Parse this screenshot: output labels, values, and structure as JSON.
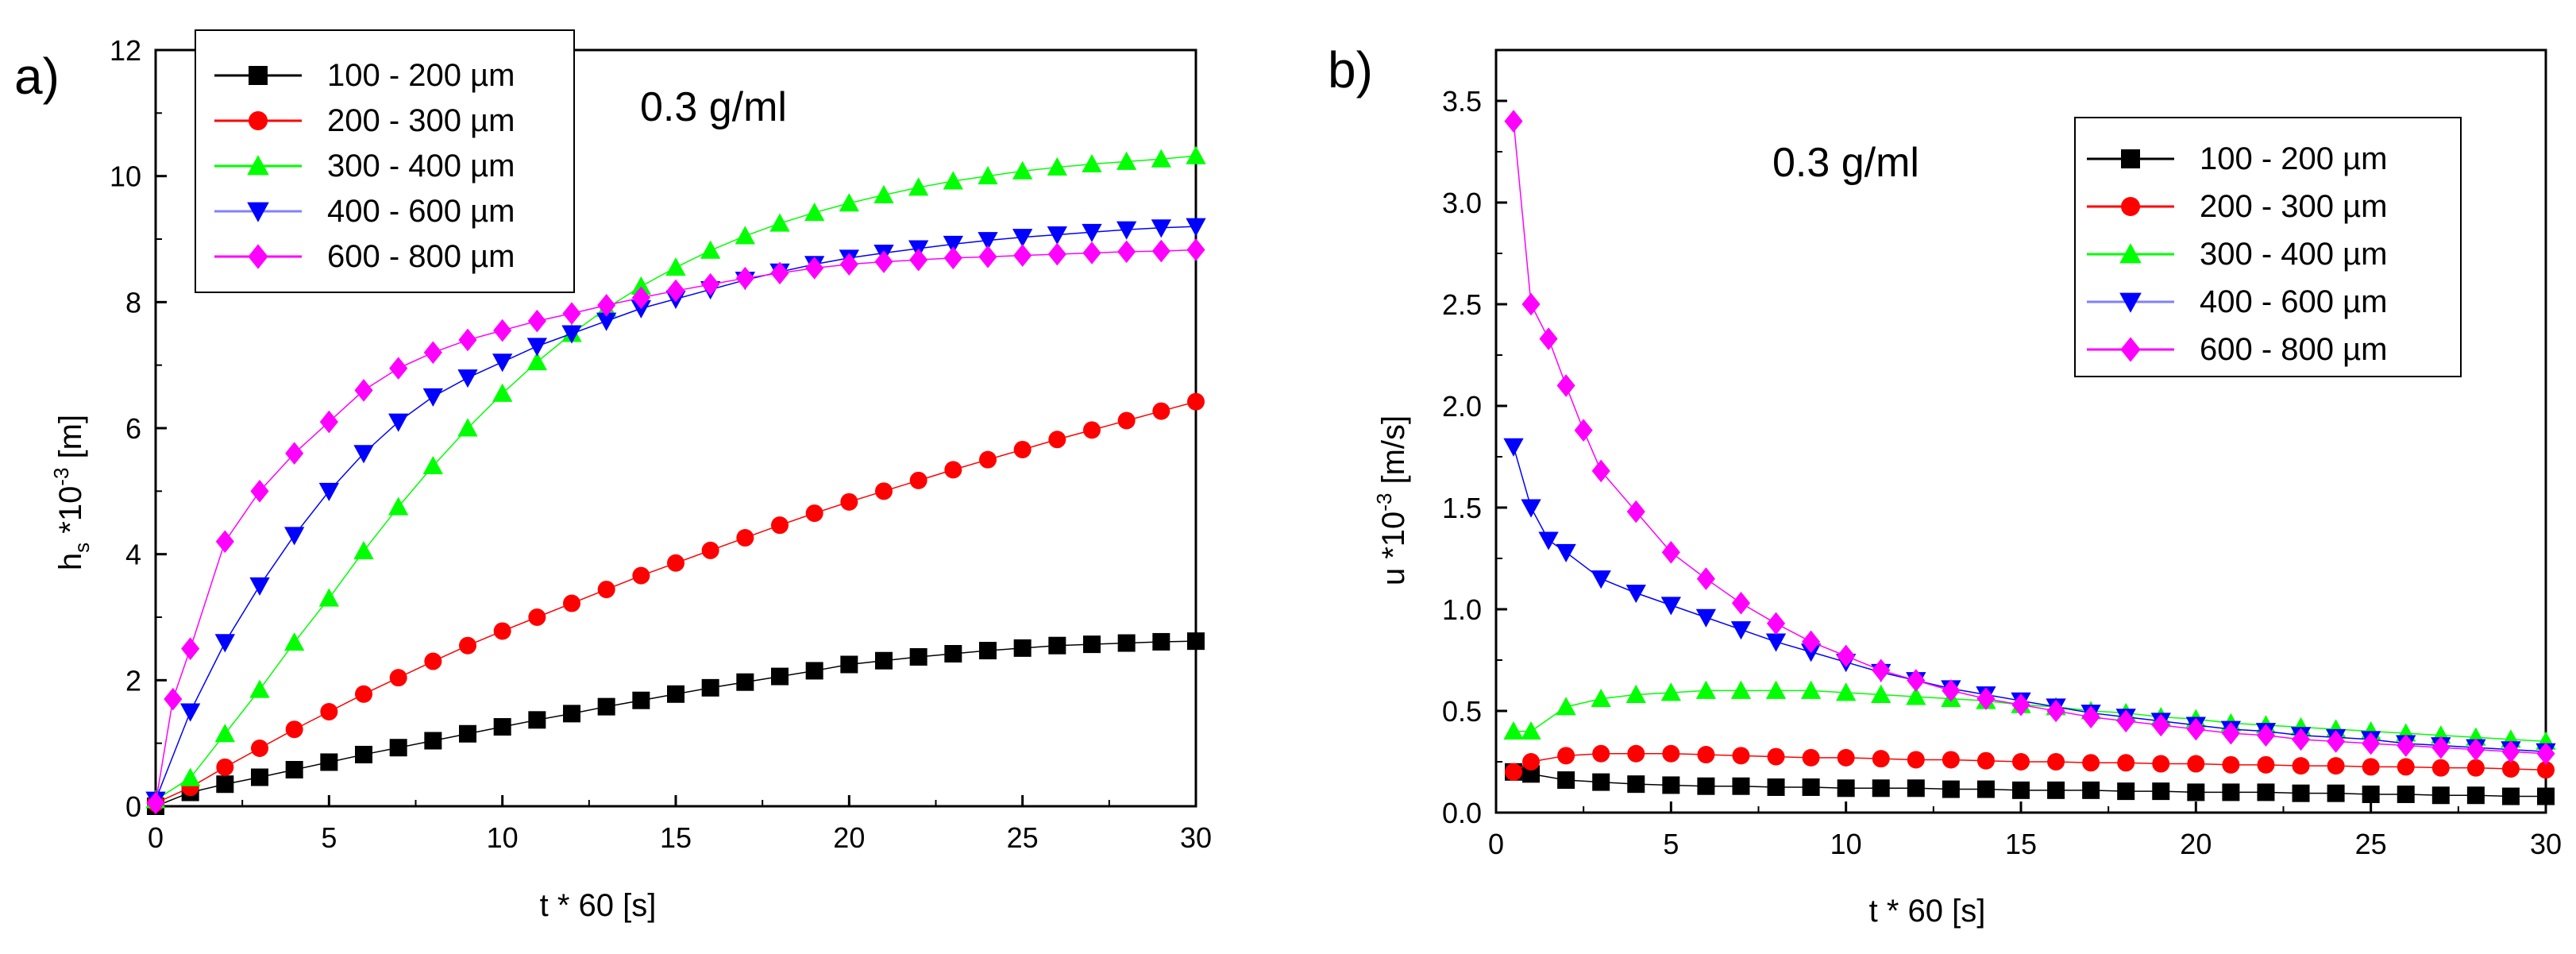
{
  "chart_data": [
    {
      "panel_label": "a)",
      "type": "scatter",
      "annotation": "0.3 g/ml",
      "xlabel": "t * 60 [s]",
      "ylabel": {
        "base": "h",
        "sub": "s",
        "mid": " *10",
        "sup": "-3",
        "end": " [m]"
      },
      "xlim": [
        0,
        30
      ],
      "ylim": [
        0,
        12
      ],
      "xticks": [
        "0",
        "5",
        "10",
        "15",
        "20",
        "25",
        "30"
      ],
      "yticks": [
        "0",
        "2",
        "4",
        "6",
        "8",
        "10",
        "12"
      ],
      "legend_position": "top-left",
      "series": [
        {
          "name": "100 - 200 µm",
          "color": "#000000",
          "marker": "square",
          "x": [
            0,
            1,
            2,
            3,
            4,
            5,
            6,
            7,
            8,
            9,
            10,
            11,
            12,
            13,
            14,
            15,
            16,
            17,
            18,
            19,
            20,
            21,
            22,
            23,
            24,
            25,
            26,
            27,
            28,
            29,
            30
          ],
          "y": [
            0,
            0.22,
            0.35,
            0.46,
            0.58,
            0.7,
            0.82,
            0.93,
            1.04,
            1.15,
            1.26,
            1.37,
            1.47,
            1.58,
            1.68,
            1.78,
            1.88,
            1.97,
            2.06,
            2.15,
            2.25,
            2.31,
            2.37,
            2.42,
            2.47,
            2.51,
            2.55,
            2.57,
            2.59,
            2.61,
            2.62
          ]
        },
        {
          "name": "200 - 300 µm",
          "color": "#ff0000",
          "marker": "circle",
          "x": [
            0,
            1,
            2,
            3,
            4,
            5,
            6,
            7,
            8,
            9,
            10,
            11,
            12,
            13,
            14,
            15,
            16,
            17,
            18,
            19,
            20,
            21,
            22,
            23,
            24,
            25,
            26,
            27,
            28,
            29,
            30
          ],
          "y": [
            0.05,
            0.3,
            0.62,
            0.92,
            1.22,
            1.5,
            1.78,
            2.04,
            2.3,
            2.55,
            2.78,
            3.0,
            3.22,
            3.44,
            3.66,
            3.86,
            4.06,
            4.26,
            4.46,
            4.65,
            4.83,
            5.0,
            5.17,
            5.34,
            5.5,
            5.66,
            5.82,
            5.97,
            6.12,
            6.27,
            6.42
          ]
        },
        {
          "name": "300 - 400 µm",
          "color": "#00ff00",
          "marker": "triangle-up",
          "x": [
            0,
            1,
            2,
            3,
            4,
            5,
            6,
            7,
            8,
            9,
            10,
            11,
            12,
            13,
            14,
            15,
            16,
            17,
            18,
            19,
            20,
            21,
            22,
            23,
            24,
            25,
            26,
            27,
            28,
            29,
            30
          ],
          "y": [
            0.1,
            0.45,
            1.15,
            1.85,
            2.6,
            3.3,
            4.05,
            4.75,
            5.4,
            6.0,
            6.55,
            7.05,
            7.5,
            7.9,
            8.25,
            8.55,
            8.82,
            9.05,
            9.25,
            9.42,
            9.57,
            9.7,
            9.82,
            9.92,
            10.0,
            10.08,
            10.14,
            10.19,
            10.23,
            10.27,
            10.32
          ]
        },
        {
          "name": "400 - 600 µm",
          "color": "#0000ff",
          "marker": "triangle-down",
          "x": [
            0,
            1,
            2,
            3,
            4,
            5,
            6,
            7,
            8,
            9,
            10,
            11,
            12,
            13,
            14,
            15,
            16,
            17,
            18,
            19,
            20,
            21,
            22,
            23,
            24,
            25,
            26,
            27,
            28,
            29,
            30
          ],
          "y": [
            0.1,
            1.5,
            2.6,
            3.5,
            4.3,
            5.0,
            5.6,
            6.1,
            6.5,
            6.8,
            7.05,
            7.3,
            7.5,
            7.7,
            7.9,
            8.05,
            8.2,
            8.35,
            8.48,
            8.6,
            8.7,
            8.78,
            8.85,
            8.92,
            8.98,
            9.03,
            9.07,
            9.11,
            9.15,
            9.18,
            9.2
          ]
        },
        {
          "name": "600 - 800 µm",
          "color": "#ff00ff",
          "marker": "diamond",
          "x": [
            0,
            0.5,
            1,
            2,
            3,
            4,
            5,
            6,
            7,
            8,
            9,
            10,
            11,
            12,
            13,
            14,
            15,
            16,
            17,
            18,
            19,
            20,
            21,
            22,
            23,
            24,
            25,
            26,
            27,
            28,
            29,
            30
          ],
          "y": [
            0.05,
            1.7,
            2.5,
            4.2,
            5.0,
            5.6,
            6.1,
            6.6,
            6.95,
            7.2,
            7.4,
            7.55,
            7.7,
            7.82,
            7.95,
            8.07,
            8.18,
            8.28,
            8.38,
            8.46,
            8.54,
            8.6,
            8.64,
            8.67,
            8.7,
            8.72,
            8.74,
            8.76,
            8.78,
            8.8,
            8.81,
            8.83
          ]
        }
      ]
    },
    {
      "panel_label": "b)",
      "type": "scatter",
      "annotation": "0.3 g/ml",
      "xlabel": "t * 60 [s]",
      "ylabel": {
        "base": "u",
        "sub": "",
        "mid": " *10",
        "sup": "-3",
        "end": " [m/s]"
      },
      "xlim": [
        0,
        30
      ],
      "ylim": [
        0,
        3.75
      ],
      "xticks": [
        "0",
        "5",
        "10",
        "15",
        "20",
        "25",
        "30"
      ],
      "yticks": [
        "0.0",
        "0.5",
        "1.0",
        "1.5",
        "2.0",
        "2.5",
        "3.0",
        "3.5"
      ],
      "legend_position": "top-right",
      "series": [
        {
          "name": "100 - 200 µm",
          "color": "#000000",
          "marker": "square",
          "x": [
            0.5,
            1,
            2,
            3,
            4,
            5,
            6,
            7,
            8,
            9,
            10,
            11,
            12,
            13,
            14,
            15,
            16,
            17,
            18,
            19,
            20,
            21,
            22,
            23,
            24,
            25,
            26,
            27,
            28,
            29,
            30
          ],
          "y": [
            0.2,
            0.19,
            0.16,
            0.15,
            0.14,
            0.135,
            0.13,
            0.13,
            0.125,
            0.125,
            0.12,
            0.12,
            0.12,
            0.115,
            0.115,
            0.11,
            0.11,
            0.11,
            0.105,
            0.105,
            0.1,
            0.1,
            0.1,
            0.095,
            0.095,
            0.09,
            0.09,
            0.085,
            0.085,
            0.08,
            0.08
          ]
        },
        {
          "name": "200 - 300 µm",
          "color": "#ff0000",
          "marker": "circle",
          "x": [
            0.5,
            1,
            2,
            3,
            4,
            5,
            6,
            7,
            8,
            9,
            10,
            11,
            12,
            13,
            14,
            15,
            16,
            17,
            18,
            19,
            20,
            21,
            22,
            23,
            24,
            25,
            26,
            27,
            28,
            29,
            30
          ],
          "y": [
            0.2,
            0.25,
            0.28,
            0.29,
            0.29,
            0.29,
            0.285,
            0.28,
            0.275,
            0.27,
            0.27,
            0.265,
            0.26,
            0.26,
            0.255,
            0.25,
            0.25,
            0.245,
            0.245,
            0.24,
            0.24,
            0.235,
            0.235,
            0.23,
            0.23,
            0.225,
            0.225,
            0.22,
            0.22,
            0.215,
            0.21
          ]
        },
        {
          "name": "300 - 400 µm",
          "color": "#00ff00",
          "marker": "triangle-up",
          "x": [
            0.5,
            1,
            2,
            3,
            4,
            5,
            6,
            7,
            8,
            9,
            10,
            11,
            12,
            13,
            14,
            15,
            16,
            17,
            18,
            19,
            20,
            21,
            22,
            23,
            24,
            25,
            26,
            27,
            28,
            29,
            30
          ],
          "y": [
            0.4,
            0.4,
            0.52,
            0.56,
            0.58,
            0.59,
            0.6,
            0.6,
            0.6,
            0.6,
            0.59,
            0.58,
            0.57,
            0.56,
            0.55,
            0.53,
            0.52,
            0.5,
            0.49,
            0.47,
            0.46,
            0.44,
            0.43,
            0.42,
            0.41,
            0.4,
            0.39,
            0.38,
            0.37,
            0.36,
            0.35
          ]
        },
        {
          "name": "400 - 600 µm",
          "color": "#0000ff",
          "marker": "triangle-down",
          "x": [
            0.5,
            1,
            1.5,
            2,
            3,
            4,
            5,
            6,
            7,
            8,
            9,
            10,
            11,
            12,
            13,
            14,
            15,
            16,
            17,
            18,
            19,
            20,
            21,
            22,
            23,
            24,
            25,
            26,
            27,
            28,
            29,
            30
          ],
          "y": [
            1.8,
            1.5,
            1.34,
            1.28,
            1.15,
            1.08,
            1.02,
            0.96,
            0.9,
            0.84,
            0.79,
            0.74,
            0.69,
            0.65,
            0.61,
            0.58,
            0.55,
            0.52,
            0.49,
            0.47,
            0.45,
            0.43,
            0.41,
            0.4,
            0.38,
            0.37,
            0.36,
            0.34,
            0.33,
            0.32,
            0.31,
            0.3
          ]
        },
        {
          "name": "600 - 800 µm",
          "color": "#ff00ff",
          "marker": "diamond",
          "x": [
            0.5,
            1,
            1.5,
            2,
            2.5,
            3,
            4,
            5,
            6,
            7,
            8,
            9,
            10,
            11,
            12,
            13,
            14,
            15,
            16,
            17,
            18,
            19,
            20,
            21,
            22,
            23,
            24,
            25,
            26,
            27,
            28,
            29,
            30
          ],
          "y": [
            3.4,
            2.5,
            2.33,
            2.1,
            1.88,
            1.68,
            1.48,
            1.28,
            1.15,
            1.03,
            0.93,
            0.84,
            0.77,
            0.7,
            0.65,
            0.6,
            0.56,
            0.53,
            0.5,
            0.47,
            0.45,
            0.43,
            0.41,
            0.39,
            0.38,
            0.36,
            0.35,
            0.34,
            0.33,
            0.32,
            0.31,
            0.3,
            0.29
          ]
        }
      ]
    }
  ]
}
